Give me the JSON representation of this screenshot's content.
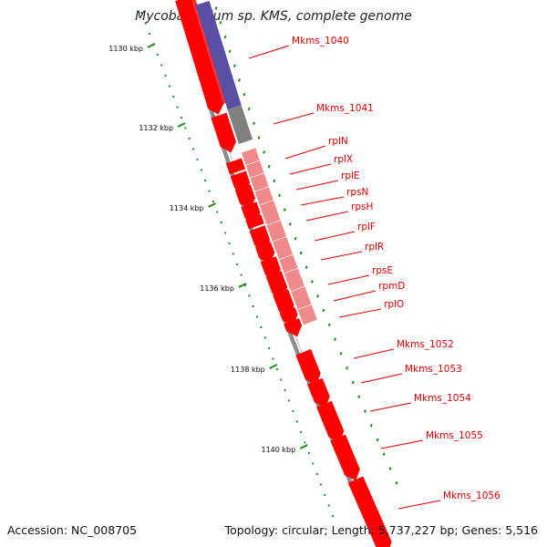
{
  "title": "Mycobacterium sp. KMS, complete genome",
  "footer": {
    "accession": "Accession: NC_008705",
    "topology": "Topology: circular; Length: 5,737,227 bp; Genes: 5,516"
  },
  "ruler": {
    "labels": [
      "1130 kbp",
      "1132 kbp",
      "1134 kbp",
      "1136 kbp",
      "1138 kbp",
      "1140 kbp"
    ]
  },
  "genes": [
    {
      "name": "Mkms_1040",
      "strand": "minus",
      "color": "#5b4fa3"
    },
    {
      "name": "Mkms_1041",
      "strand": "minus",
      "color": "#808080"
    },
    {
      "name": "rplN",
      "strand": "minus",
      "color": "#f08080"
    },
    {
      "name": "rplX",
      "strand": "minus",
      "color": "#f08080"
    },
    {
      "name": "rplE",
      "strand": "minus",
      "color": "#f08080"
    },
    {
      "name": "rpsN",
      "strand": "minus",
      "color": "#f08080"
    },
    {
      "name": "rpsH",
      "strand": "minus",
      "color": "#f08080"
    },
    {
      "name": "rplF",
      "strand": "minus",
      "color": "#f08080"
    },
    {
      "name": "rplR",
      "strand": "minus",
      "color": "#f08080"
    },
    {
      "name": "rpsE",
      "strand": "minus",
      "color": "#f08080"
    },
    {
      "name": "rpmD",
      "strand": "minus",
      "color": "#f08080"
    },
    {
      "name": "rplO",
      "strand": "minus",
      "color": "#f08080"
    },
    {
      "name": "Mkms_1052",
      "strand": "plus",
      "color": "#ff0000"
    },
    {
      "name": "Mkms_1053",
      "strand": "plus",
      "color": "#ff0000"
    },
    {
      "name": "Mkms_1054",
      "strand": "plus",
      "color": "#ff0000"
    },
    {
      "name": "Mkms_1055",
      "strand": "plus",
      "color": "#ff0000"
    },
    {
      "name": "Mkms_1056",
      "strand": "plus",
      "color": "#ff0000"
    }
  ],
  "colors": {
    "backbone": "#8c8c8c",
    "cds": "#ff0000",
    "ruler_dots": "#1a8a1a",
    "label": "#e00000"
  }
}
